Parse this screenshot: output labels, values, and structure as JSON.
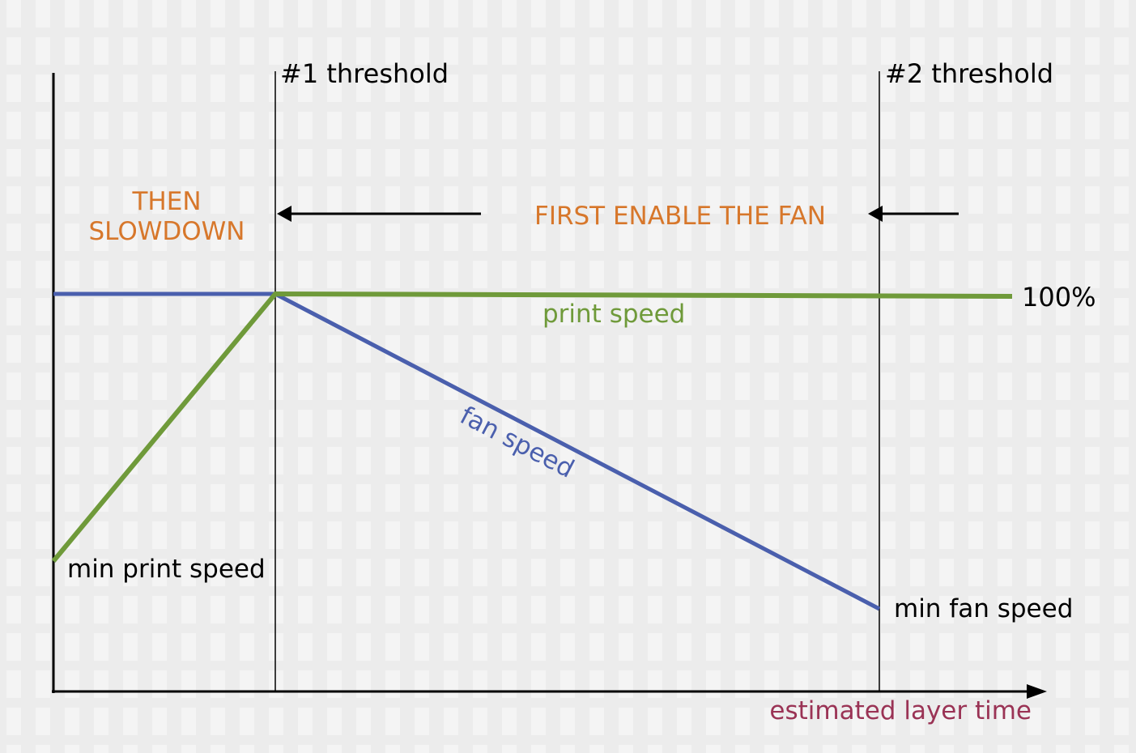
{
  "labels": {
    "threshold1": "#1 threshold",
    "threshold2": "#2 threshold",
    "then_line1": "THEN",
    "then_line2": "SLOWDOWN",
    "first_enable": "FIRST ENABLE THE FAN",
    "pct100": "100%",
    "print_speed": "print speed",
    "fan_speed": "fan speed",
    "min_print_speed": "min print speed",
    "min_fan_speed": "min fan speed",
    "x_axis": "estimated layer time"
  },
  "colors": {
    "print_speed": "#6f9a3a",
    "fan_speed": "#4a5fad",
    "annotation": "#d7772b",
    "x_axis_label": "#9a3355",
    "axis": "#000000",
    "background": "#ececec"
  },
  "chart_data": {
    "type": "line",
    "x_breakpoints": [
      "#1 threshold",
      "#2 threshold"
    ],
    "series": [
      {
        "name": "print speed",
        "points": [
          {
            "x": "0",
            "y": "min print speed"
          },
          {
            "x": "#1 threshold",
            "y": "100%"
          },
          {
            "x": "beyond #2 threshold",
            "y": "100%"
          }
        ]
      },
      {
        "name": "fan speed",
        "points": [
          {
            "x": "0",
            "y": "100%"
          },
          {
            "x": "#1 threshold",
            "y": "100%"
          },
          {
            "x": "#2 threshold",
            "y": "min fan speed"
          }
        ]
      }
    ],
    "xlabel": "estimated layer time",
    "annotations": [
      "THEN SLOWDOWN",
      "FIRST ENABLE THE FAN"
    ]
  }
}
